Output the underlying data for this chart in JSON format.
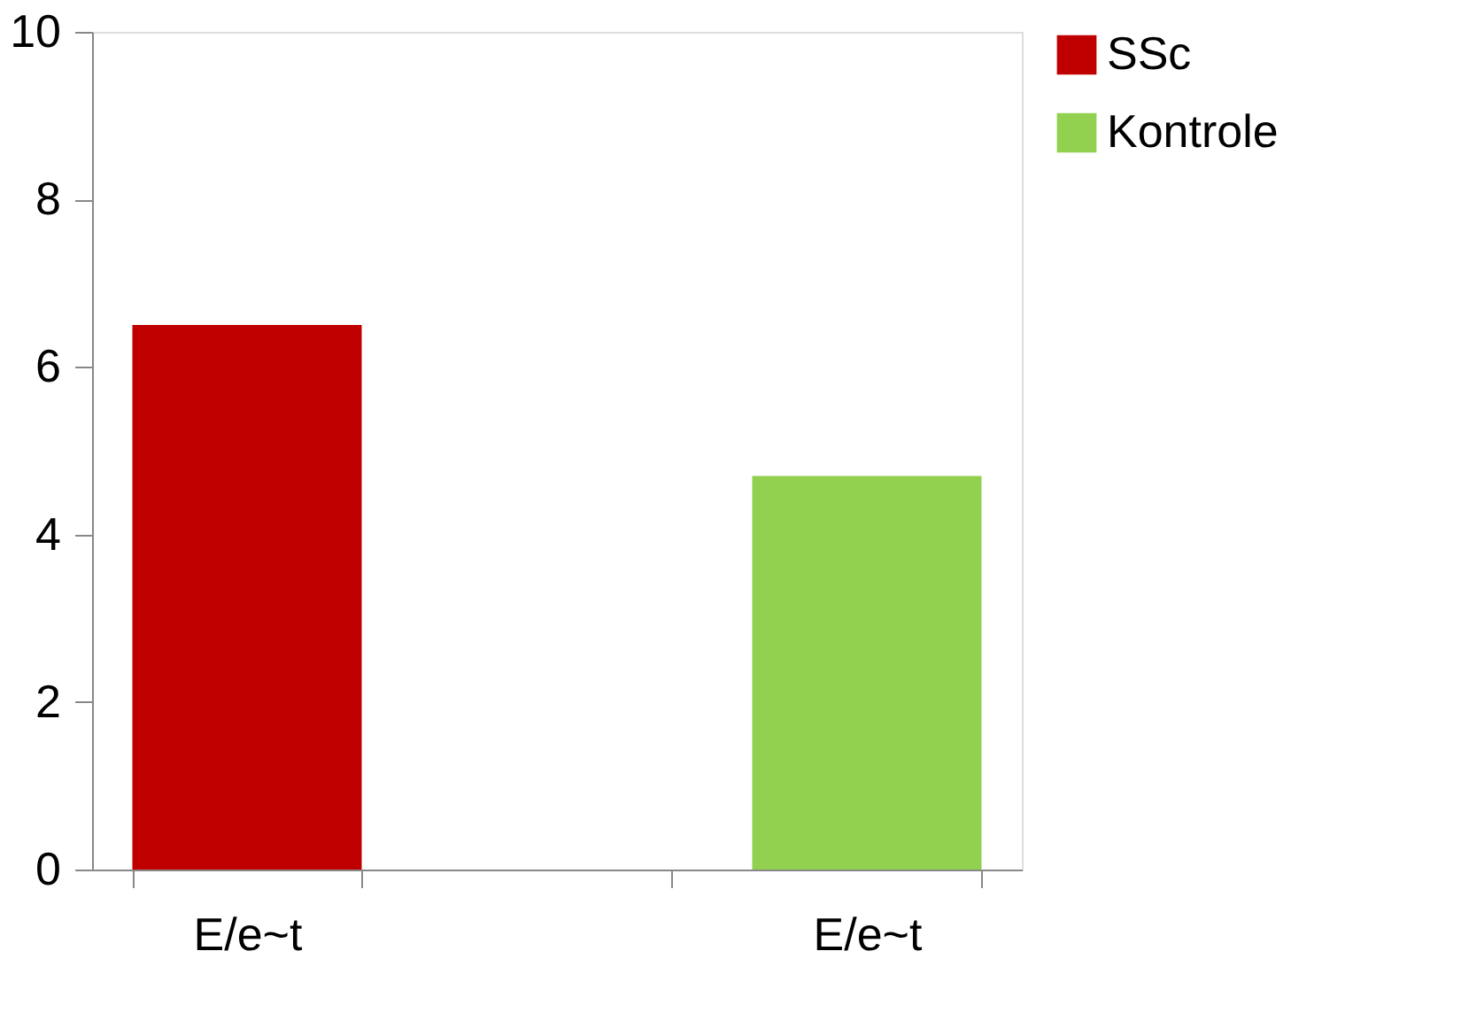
{
  "chart_data": {
    "type": "bar",
    "categories": [
      "E/e~t",
      null,
      "E/e~t"
    ],
    "series": [
      {
        "name": "SSc",
        "color": "#c00000",
        "values": [
          6.5,
          null,
          null
        ]
      },
      {
        "name": "Kontrole",
        "color": "#92d050",
        "values": [
          null,
          null,
          4.7
        ]
      }
    ],
    "ylim": [
      0,
      10
    ],
    "yticks": [
      0,
      2,
      4,
      6,
      8,
      10
    ],
    "grid": false,
    "legend": "right"
  }
}
